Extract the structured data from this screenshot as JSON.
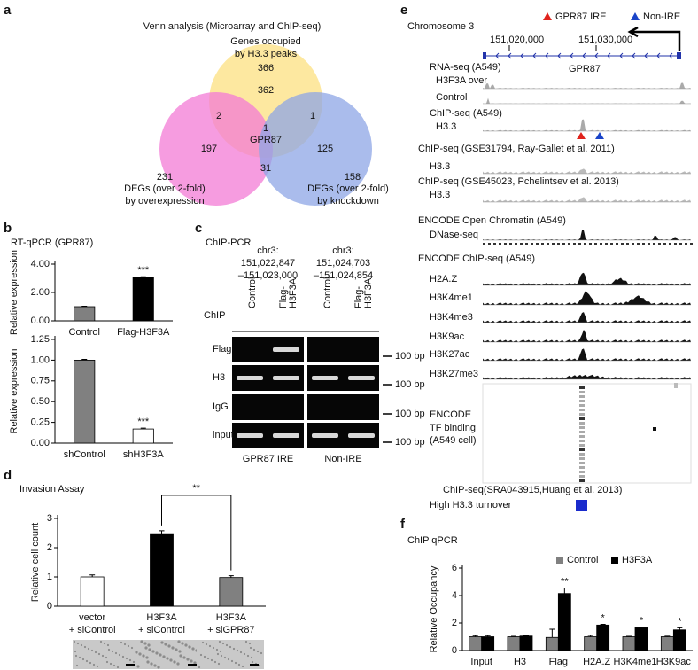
{
  "panel_labels": [
    "a",
    "b",
    "c",
    "d",
    "e",
    "f"
  ],
  "venn": {
    "title": "Venn analysis (Microarray and ChIP-seq)",
    "sets": [
      {
        "label": [
          "Genes occupied",
          "by H3.3 peaks"
        ],
        "total": 366
      },
      {
        "label": [
          "DEGs (over 2-fold)",
          "by overexpression"
        ],
        "total": 231
      },
      {
        "label": [
          "DEGs (over 2-fold)",
          "by knockdown"
        ],
        "total": 158
      }
    ],
    "regions": {
      "occupied_only": 362,
      "occupied_overexpression": 2,
      "occupied_knockdown": 1,
      "all_three": 1,
      "all_three_gene": "GPR87",
      "overexpression_only": 197,
      "overexpression_knockdown": 31,
      "knockdown_only": 125
    }
  },
  "b_title": "RT-qPCR (GPR87)",
  "chart_data": [
    {
      "type": "bar",
      "ylabel": "Relative expression",
      "categories": [
        "Control",
        "Flag-H3F3A"
      ],
      "values": [
        1.0,
        3.05
      ],
      "errors": [
        0.03,
        0.06
      ],
      "colors": [
        "#808080",
        "#000000"
      ],
      "ylim": [
        0,
        4
      ],
      "yticks": [
        {
          "value": 0,
          "label": "0.00"
        },
        {
          "value": 2,
          "label": "2.00"
        },
        {
          "value": 4,
          "label": "4.00"
        }
      ],
      "annotations": [
        {
          "text": "***",
          "at": 1
        }
      ]
    },
    {
      "type": "bar",
      "ylabel": "Relative expression",
      "categories": [
        "shControl",
        "shH3F3A"
      ],
      "values": [
        1.0,
        0.17
      ],
      "errors": [
        0.01,
        0.01
      ],
      "colors": [
        "#808080",
        "#ffffff"
      ],
      "ylim": [
        0,
        1.25
      ],
      "yticks": [
        {
          "value": 0,
          "label": "0.00"
        },
        {
          "value": 0.25,
          "label": "0.25"
        },
        {
          "value": 0.5,
          "label": "0.50"
        },
        {
          "value": 0.75,
          "label": "0.75"
        },
        {
          "value": 1,
          "label": "1.00"
        },
        {
          "value": 1.25,
          "label": "1.25"
        }
      ],
      "annotations": [
        {
          "text": "***",
          "at": 1
        }
      ]
    },
    {
      "type": "bar",
      "title": "Invasion Assay",
      "ylabel": "Relative cell count",
      "categories": [
        "vector",
        "H3F3A",
        "H3F3A"
      ],
      "subcategories": [
        "+ siControl",
        "+ siControl",
        "+ siGPR87"
      ],
      "values": [
        1.0,
        2.48,
        0.98
      ],
      "errors": [
        0.07,
        0.1,
        0.06
      ],
      "colors": [
        "#ffffff",
        "#000000",
        "#808080"
      ],
      "ylim": [
        0,
        3
      ],
      "yticks": [
        0,
        1,
        2,
        3
      ],
      "annotations": [
        {
          "text": "**",
          "bars": [
            1,
            2
          ]
        }
      ]
    },
    {
      "type": "grouped-bar",
      "title": "ChIP qPCR",
      "ylabel": "Relative Occupancy",
      "categories": [
        "Input",
        "H3",
        "Flag",
        "H2A.Z",
        "H3K4me1",
        "H3K9ac"
      ],
      "series": [
        {
          "name": "Control",
          "color": "#808080",
          "values": [
            1.0,
            1.0,
            0.95,
            1.0,
            1.0,
            1.0
          ],
          "errors": [
            0.08,
            0.03,
            0.6,
            0.1,
            0.03,
            0.04
          ]
        },
        {
          "name": "H3F3A",
          "color": "#000000",
          "values": [
            1.0,
            1.05,
            4.15,
            1.85,
            1.65,
            1.5
          ],
          "errors": [
            0.08,
            0.05,
            0.4,
            0.05,
            0.06,
            0.15
          ]
        }
      ],
      "ylim": [
        0,
        6
      ],
      "yticks": [
        0,
        2,
        4,
        6
      ],
      "legend": "top-right",
      "annotations": [
        {
          "text": "**",
          "at": 2
        },
        {
          "text": "*",
          "at": 3
        },
        {
          "text": "*",
          "at": 4
        },
        {
          "text": "*",
          "at": 5
        }
      ]
    }
  ],
  "gel": {
    "title": "ChIP-PCR",
    "row_header": "ChIP",
    "rows": [
      "Flag",
      "H3",
      "IgG",
      "input"
    ],
    "regions": [
      {
        "coords": [
          "chr3:",
          "151,022,847",
          "–151,023,000"
        ],
        "columns": [
          "Control",
          "Flag-",
          "H3F3A"
        ],
        "name": "GPR87 IRE"
      },
      {
        "coords": [
          "chr3:",
          "151,024,703",
          "–151,024,854"
        ],
        "columns": [
          "Control",
          "Flag-",
          "H3F3A"
        ],
        "name": "Non-IRE"
      }
    ],
    "markers": [
      "100 bp",
      "100 bp",
      "100 bp",
      "100 bp"
    ]
  },
  "genome": {
    "chromosome": "Chromosome 3",
    "coords": [
      "151,020,000",
      "151,030,000"
    ],
    "legend": [
      "GPR87 IRE",
      "Non-IRE"
    ],
    "gene": "GPR87",
    "labels": [
      "RNA-seq (A549)",
      "H3F3A over",
      "Control",
      "ChIP-seq (A549)",
      "H3.3",
      "ChIP-seq (GSE31794, Ray-Gallet et al. 2011)",
      "H3.3",
      "ChIP-seq (GSE45023, Pchelintsev et al. 2013)",
      "H3.3",
      "ENCODE Open Chromatin (A549)",
      "DNase-seq",
      "ENCODE ChIP-seq (A549)",
      "H2A.Z",
      "H3K4me1",
      "H3K4me3",
      "H3K9ac",
      "H3K27ac",
      "H3K27me3",
      "ENCODE",
      "TF binding",
      "(A549 cell)",
      "ChIP-seq(SRA043915,Huang et al. 2013)",
      "High H3.3 turnover"
    ]
  }
}
